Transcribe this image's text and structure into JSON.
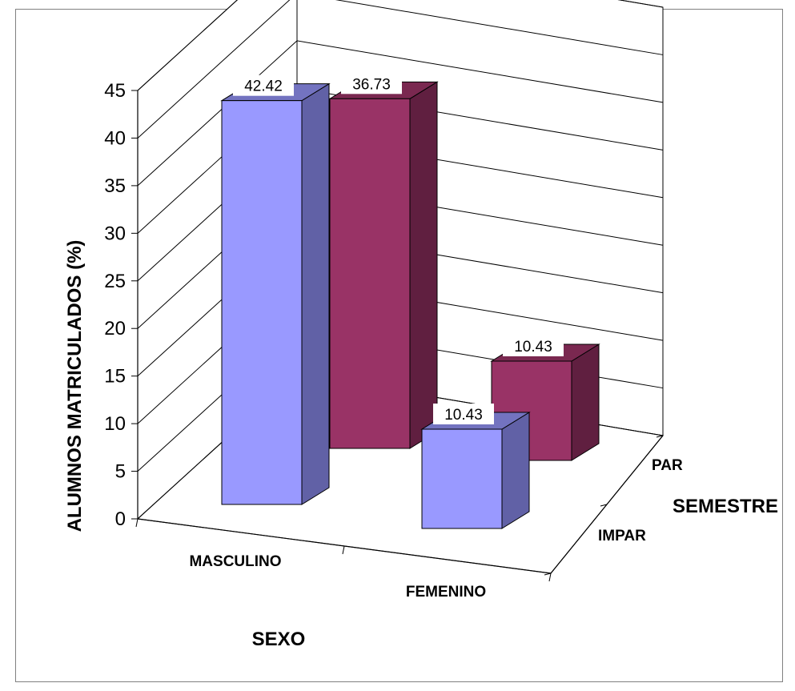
{
  "chart_data": {
    "type": "bar",
    "variant": "3d-clustered",
    "title": "",
    "xlabel": "SEXO",
    "ylabel": "ALUMNOS MATRICULADOS  (%)",
    "zlabel": "SEMESTRE",
    "categories": [
      "MASCULINO",
      "FEMENINO"
    ],
    "series": [
      {
        "name": "IMPAR",
        "values": [
          42.42,
          10.43
        ],
        "color": "#9999ff"
      },
      {
        "name": "PAR",
        "values": [
          36.73,
          10.43
        ],
        "color": "#993366"
      }
    ],
    "ylim": [
      0,
      45
    ],
    "yticks": [
      "0",
      "5",
      "10",
      "15",
      "20",
      "25",
      "30",
      "35",
      "40",
      "45"
    ],
    "data_labels": [
      "42.42",
      "36.73",
      "10.43",
      "10.43"
    ],
    "grid": true,
    "legend": "none"
  }
}
